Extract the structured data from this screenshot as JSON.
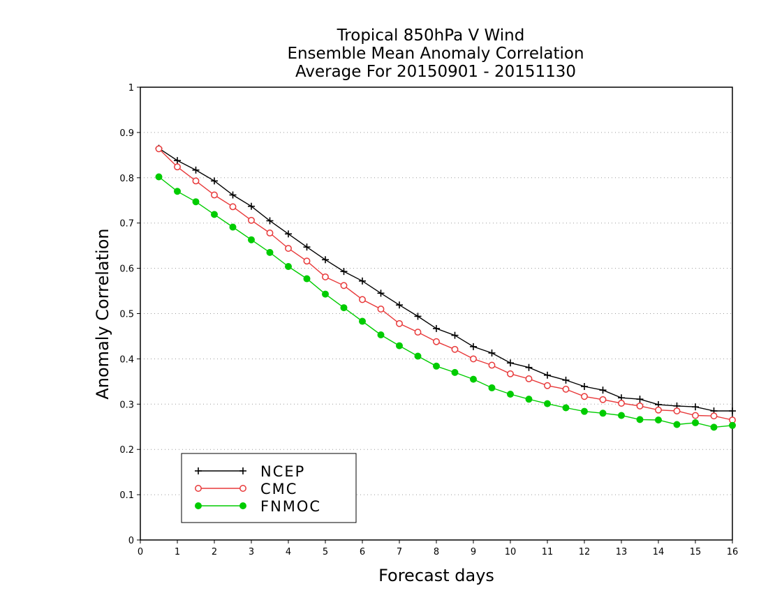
{
  "chart_data": {
    "type": "line",
    "title": [
      "Tropical 850hPa V Wind",
      "Ensemble Mean Anomaly Correlation",
      "Average For 20150901 - 20151130"
    ],
    "xlabel": "Forecast days",
    "ylabel": "Anomaly Correlation",
    "xlim": [
      0,
      16
    ],
    "ylim": [
      0,
      1
    ],
    "xticks": [
      0,
      1,
      2,
      3,
      4,
      5,
      6,
      7,
      8,
      9,
      10,
      11,
      12,
      13,
      14,
      15,
      16
    ],
    "yticks": [
      0,
      0.1,
      0.2,
      0.3,
      0.4,
      0.5,
      0.6,
      0.7,
      0.8,
      0.9,
      1
    ],
    "grid": "horizontal-dotted",
    "legend_position": "bottom-left",
    "x": [
      0.5,
      1,
      1.5,
      2,
      2.5,
      3,
      3.5,
      4,
      4.5,
      5,
      5.5,
      6,
      6.5,
      7,
      7.5,
      8,
      8.5,
      9,
      9.5,
      10,
      10.5,
      11,
      11.5,
      12,
      12.5,
      13,
      13.5,
      14,
      14.5,
      15,
      15.5,
      16
    ],
    "series": [
      {
        "name": "NCEP",
        "color": "#000000",
        "marker": "plus",
        "values": [
          0.865,
          0.838,
          0.817,
          0.793,
          0.762,
          0.737,
          0.705,
          0.676,
          0.647,
          0.619,
          0.593,
          0.572,
          0.545,
          0.519,
          0.494,
          0.467,
          0.452,
          0.427,
          0.413,
          0.391,
          0.381,
          0.364,
          0.353,
          0.339,
          0.331,
          0.314,
          0.311,
          0.299,
          0.296,
          0.294,
          0.285,
          0.285
        ]
      },
      {
        "name": "CMC",
        "color": "#e8393a",
        "marker": "open-circle",
        "values": [
          0.864,
          0.824,
          0.793,
          0.762,
          0.736,
          0.706,
          0.678,
          0.644,
          0.616,
          0.581,
          0.562,
          0.531,
          0.51,
          0.478,
          0.459,
          0.438,
          0.421,
          0.4,
          0.386,
          0.367,
          0.356,
          0.341,
          0.333,
          0.317,
          0.31,
          0.302,
          0.296,
          0.287,
          0.285,
          0.275,
          0.274,
          0.265
        ]
      },
      {
        "name": "FNMOC",
        "color": "#00cc00",
        "marker": "filled-circle",
        "values": [
          0.802,
          0.77,
          0.747,
          0.719,
          0.691,
          0.663,
          0.635,
          0.604,
          0.577,
          0.543,
          0.513,
          0.483,
          0.453,
          0.429,
          0.406,
          0.384,
          0.37,
          0.355,
          0.336,
          0.322,
          0.311,
          0.301,
          0.292,
          0.284,
          0.28,
          0.275,
          0.266,
          0.265,
          0.255,
          0.259,
          0.249,
          0.253
        ]
      }
    ]
  }
}
